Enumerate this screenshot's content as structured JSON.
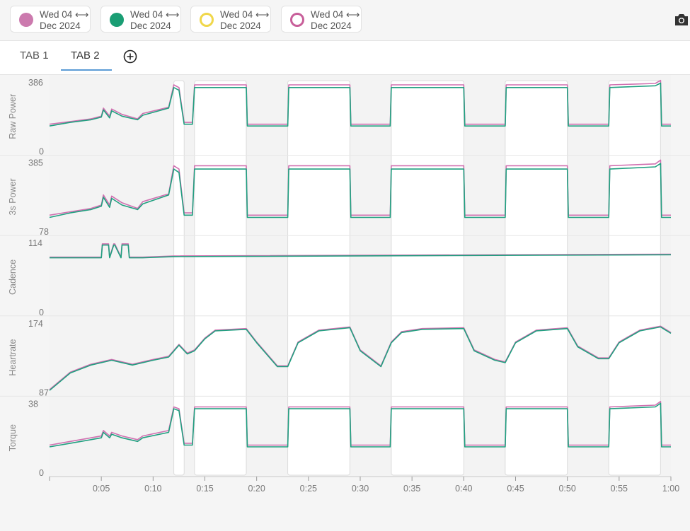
{
  "legend": [
    {
      "line1": "Wed 04",
      "arrow": "⟷",
      "line2": "Dec 2024",
      "style": "filled",
      "color": "#cc7aae"
    },
    {
      "line1": "Wed 04",
      "arrow": "⟷",
      "line2": "Dec 2024",
      "style": "filled",
      "color": "#1a9e74"
    },
    {
      "line1": "Wed 04",
      "arrow": "⟷",
      "line2": "Dec 2024",
      "style": "ring",
      "color": "#f0d74a"
    },
    {
      "line1": "Wed 04",
      "arrow": "⟷",
      "line2": "Dec 2024",
      "style": "ring",
      "color": "#c85f9a"
    }
  ],
  "toolbar": {
    "camera_icon": "camera-icon",
    "add_tab_icon": "circle-plus-icon"
  },
  "tabs": [
    {
      "label": "TAB 1"
    },
    {
      "label": "TAB 2",
      "active": true
    }
  ],
  "colors": {
    "series_a": "#d070b0",
    "series_b": "#20a080",
    "grid": "#e6e6e6",
    "accent": "#5b9bd5"
  },
  "chart_data": {
    "type": "line",
    "x_unit": "minutes",
    "x_ticks": [
      "0:05",
      "0:10",
      "0:15",
      "0:20",
      "0:25",
      "0:30",
      "0:35",
      "0:40",
      "0:45",
      "0:50",
      "0:55",
      "1:00"
    ],
    "xlim": [
      0,
      60
    ],
    "highlight_intervals": [
      [
        12,
        13
      ],
      [
        14,
        19
      ],
      [
        23,
        29
      ],
      [
        33,
        40
      ],
      [
        44,
        50
      ],
      [
        54,
        59
      ]
    ],
    "panels": [
      {
        "ylabel": "Raw Power",
        "ymin": "0",
        "ymax": "386",
        "ylim": [
          0,
          386
        ],
        "series": [
          {
            "x": [
              0,
              2,
              4,
              5,
              5.2,
              5.8,
              6,
              7,
              8.5,
              9,
              11.5,
              12,
              12.5,
              13,
              13.8,
              14,
              19,
              19.1,
              23,
              23.1,
              29,
              29.1,
              32.9,
              33,
              40,
              40.1,
              44,
              44.1,
              50,
              50.1,
              54,
              54.1,
              58.5,
              59,
              59.1,
              60
            ],
            "y": [
              150,
              165,
              180,
              195,
              240,
              195,
              235,
              205,
              180,
              210,
              245,
              370,
              355,
              160,
              160,
              370,
              370,
              150,
              150,
              370,
              370,
              150,
              150,
              370,
              370,
              150,
              150,
              370,
              370,
              150,
              150,
              370,
              378,
              395,
              150,
              150
            ]
          },
          {
            "x": [
              0,
              2,
              4,
              5,
              5.2,
              5.8,
              6,
              7,
              8.5,
              9,
              11.5,
              12,
              12.5,
              13,
              13.8,
              14,
              19,
              19.1,
              23,
              23.1,
              29,
              29.1,
              32.9,
              33,
              40,
              40.1,
              44,
              44.1,
              50,
              50.1,
              54,
              54.1,
              58.5,
              59,
              59.1,
              60
            ],
            "y": [
              140,
              160,
              175,
              190,
              230,
              185,
              225,
              195,
              175,
              200,
              240,
              355,
              340,
              150,
              150,
              355,
              355,
              140,
              140,
              355,
              355,
              140,
              140,
              355,
              355,
              140,
              140,
              355,
              355,
              140,
              140,
              355,
              365,
              380,
              140,
              140
            ]
          }
        ]
      },
      {
        "ylabel": "3s Power",
        "ymin": "78",
        "ymax": "385",
        "ylim": [
          78,
          385
        ],
        "series": [
          {
            "x": [
              0,
              2,
              4,
              5,
              5.2,
              5.8,
              6,
              7,
              8.5,
              9,
              11.5,
              12,
              12.5,
              13,
              13.8,
              14,
              19,
              19.1,
              23,
              23.1,
              29,
              29.1,
              32.9,
              33,
              40,
              40.1,
              44,
              44.1,
              50,
              50.1,
              54,
              54.1,
              58.5,
              59,
              59.1,
              60
            ],
            "y": [
              150,
              165,
              180,
              195,
              240,
              195,
              235,
              205,
              180,
              210,
              245,
              370,
              355,
              160,
              160,
              370,
              370,
              150,
              150,
              370,
              370,
              150,
              150,
              370,
              370,
              150,
              150,
              370,
              370,
              150,
              150,
              370,
              378,
              395,
              150,
              150
            ]
          },
          {
            "x": [
              0,
              2,
              4,
              5,
              5.2,
              5.8,
              6,
              7,
              8.5,
              9,
              11.5,
              12,
              12.5,
              13,
              13.8,
              14,
              19,
              19.1,
              23,
              23.1,
              29,
              29.1,
              32.9,
              33,
              40,
              40.1,
              44,
              44.1,
              50,
              50.1,
              54,
              54.1,
              58.5,
              59,
              59.1,
              60
            ],
            "y": [
              140,
              160,
              175,
              190,
              230,
              185,
              225,
              195,
              175,
              200,
              240,
              355,
              340,
              150,
              150,
              355,
              355,
              140,
              140,
              355,
              355,
              140,
              140,
              355,
              355,
              140,
              140,
              355,
              355,
              140,
              140,
              355,
              365,
              380,
              140,
              140
            ]
          }
        ]
      },
      {
        "ylabel": "Cadence",
        "ymin": "0",
        "ymax": "114",
        "ylim": [
          0,
          114
        ],
        "series": [
          {
            "x": [
              0,
              5,
              5.1,
              5.7,
              5.8,
              6.2,
              6.3,
              6.9,
              7,
              7.6,
              7.7,
              9,
              12,
              60
            ],
            "y": [
              90,
              90,
              112,
              112,
              90,
              112,
              112,
              90,
              112,
              112,
              90,
              90,
              92,
              95
            ]
          },
          {
            "x": [
              0,
              5,
              5.1,
              5.7,
              5.8,
              6.2,
              6.3,
              6.9,
              7,
              7.6,
              7.7,
              9,
              12,
              60
            ],
            "y": [
              89,
              89,
              110,
              110,
              89,
              110,
              110,
              89,
              110,
              110,
              89,
              89,
              91,
              94
            ]
          }
        ]
      },
      {
        "ylabel": "Heartrate",
        "ymin": "87",
        "ymax": "174",
        "ylim": [
          87,
          174
        ],
        "series": [
          {
            "x": [
              0,
              2,
              4,
              6,
              8,
              10,
              11.5,
              12.5,
              13.3,
              14,
              15,
              16,
              19,
              20,
              22,
              23,
              24,
              26,
              29,
              30,
              32,
              33,
              34,
              36,
              40,
              41,
              43,
              44,
              45,
              47,
              50,
              51,
              53,
              54,
              55,
              57,
              59,
              60
            ],
            "y": [
              90,
              112,
              122,
              128,
              122,
              128,
              132,
              147,
              136,
              140,
              155,
              165,
              167,
              150,
              120,
              120,
              150,
              165,
              169,
              140,
              120,
              150,
              163,
              167,
              168,
              140,
              128,
              125,
              150,
              165,
              168,
              145,
              130,
              130,
              150,
              165,
              170,
              162
            ]
          },
          {
            "x": [
              0,
              2,
              4,
              6,
              8,
              10,
              11.5,
              12.5,
              13.3,
              14,
              15,
              16,
              19,
              20,
              22,
              23,
              24,
              26,
              29,
              30,
              32,
              33,
              34,
              36,
              40,
              41,
              43,
              44,
              45,
              47,
              50,
              51,
              53,
              54,
              55,
              57,
              59,
              60
            ],
            "y": [
              89,
              111,
              121,
              127,
              121,
              127,
              131,
              146,
              135,
              139,
              154,
              164,
              166,
              149,
              119,
              119,
              149,
              164,
              168,
              139,
              119,
              149,
              162,
              166,
              167,
              139,
              127,
              124,
              149,
              164,
              167,
              144,
              129,
              129,
              149,
              164,
              169,
              161
            ]
          }
        ]
      },
      {
        "ylabel": "Torque",
        "ymin": "0",
        "ymax": "38",
        "ylim": [
          0,
          38
        ],
        "series": [
          {
            "x": [
              0,
              2,
              4,
              5,
              5.2,
              5.8,
              6,
              7,
              8.5,
              9,
              11.5,
              12,
              12.5,
              13,
              13.8,
              14,
              19,
              19.1,
              23,
              23.1,
              29,
              29.1,
              32.9,
              33,
              40,
              40.1,
              44,
              44.1,
              50,
              50.1,
              54,
              54.1,
              58.5,
              59,
              59.1,
              60
            ],
            "y": [
              15,
              17,
              19,
              20,
              23,
              20,
              22,
              20,
              18,
              20,
              23,
              36,
              35,
              16,
              16,
              36,
              36,
              15,
              15,
              36,
              36,
              15,
              15,
              36,
              36,
              15,
              15,
              36,
              36,
              15,
              15,
              36,
              37,
              39,
              15,
              15
            ]
          },
          {
            "x": [
              0,
              2,
              4,
              5,
              5.2,
              5.8,
              6,
              7,
              8.5,
              9,
              11.5,
              12,
              12.5,
              13,
              13.8,
              14,
              19,
              19.1,
              23,
              23.1,
              29,
              29.1,
              32.9,
              33,
              40,
              40.1,
              44,
              44.1,
              50,
              50.1,
              54,
              54.1,
              58.5,
              59,
              59.1,
              60
            ],
            "y": [
              14,
              16,
              18,
              19,
              22,
              19,
              21,
              19,
              17,
              19,
              22,
              35,
              34,
              15,
              15,
              35,
              35,
              14,
              14,
              35,
              35,
              14,
              14,
              35,
              35,
              14,
              14,
              35,
              35,
              14,
              14,
              35,
              36,
              38,
              14,
              14
            ]
          }
        ]
      }
    ]
  }
}
